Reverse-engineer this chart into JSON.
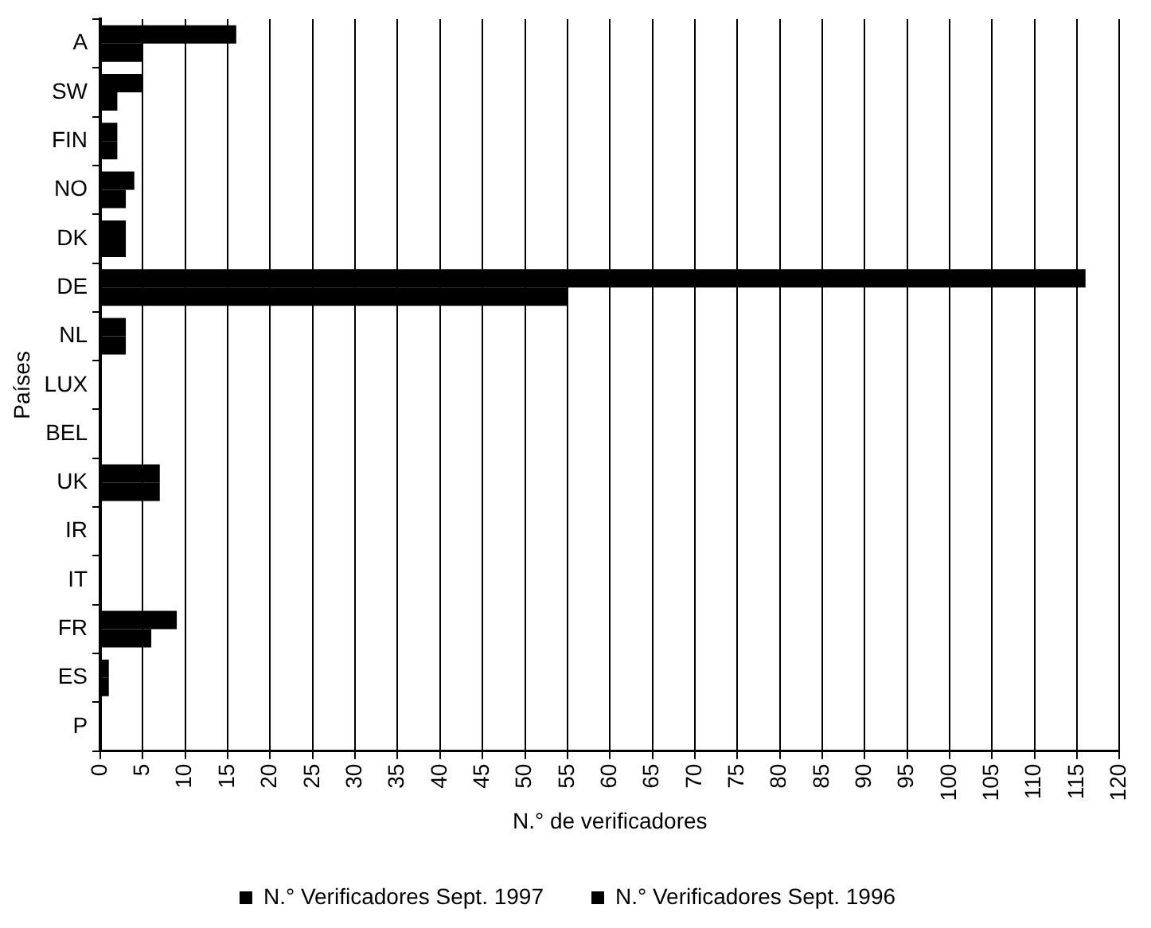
{
  "chart_data": {
    "type": "bar",
    "orientation": "horizontal",
    "xlabel": "N.° de verificadores",
    "ylabel": "Países",
    "categories": [
      "A",
      "SW",
      "FIN",
      "NO",
      "DK",
      "DE",
      "NL",
      "LUX",
      "BEL",
      "UK",
      "IR",
      "IT",
      "FR",
      "ES",
      "P"
    ],
    "series": [
      {
        "name": "N.° Verificadores Sept. 1997",
        "color": "#000000",
        "values": [
          16,
          5,
          2,
          4,
          3,
          116,
          3,
          0,
          0,
          7,
          0,
          0,
          9,
          1,
          0
        ]
      },
      {
        "name": "N.° Verificadores Sept. 1996",
        "color": "#000000",
        "values": [
          5,
          2,
          2,
          3,
          3,
          55,
          3,
          0,
          0,
          7,
          0,
          0,
          6,
          1,
          0
        ]
      }
    ],
    "xlim": [
      0,
      120
    ],
    "xticks": [
      0,
      5,
      10,
      15,
      20,
      25,
      30,
      35,
      40,
      45,
      50,
      55,
      60,
      65,
      70,
      75,
      80,
      85,
      90,
      95,
      100,
      105,
      110,
      115,
      120
    ],
    "grid": "x",
    "legend": "bottom"
  }
}
